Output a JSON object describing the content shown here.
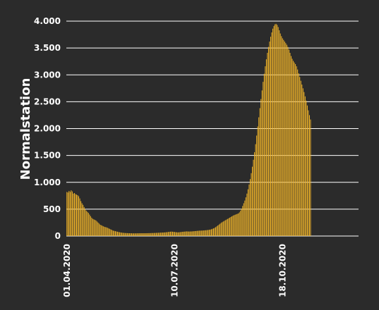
{
  "chart_data": {
    "type": "bar",
    "title": "",
    "xlabel": "",
    "ylabel": "Normalstation",
    "x_start": "2020-04-01",
    "x_end": "2020-12-27",
    "ylim": [
      0,
      4000
    ],
    "y_ticks": [
      0,
      500,
      1000,
      1500,
      2000,
      2500,
      3000,
      3500,
      4000
    ],
    "y_tick_labels": [
      "0",
      "500",
      "1.000",
      "1.500",
      "2.000",
      "2.500",
      "3.000",
      "3.500",
      "4.000"
    ],
    "x_ticks": [
      {
        "date": "2020-04-01",
        "label": "01.04.2020"
      },
      {
        "date": "2020-07-10",
        "label": "10.07.2020"
      },
      {
        "date": "2020-10-18",
        "label": "18.10.2020"
      }
    ],
    "grid": true,
    "legend": "none",
    "bar_color": "#f0b429",
    "series": [
      {
        "values": [
          820,
          810,
          840,
          820,
          850,
          830,
          790,
          800,
          780,
          770,
          760,
          740,
          700,
          650,
          610,
          580,
          540,
          500,
          470,
          450,
          430,
          400,
          370,
          340,
          320,
          310,
          300,
          290,
          270,
          250,
          230,
          210,
          200,
          190,
          180,
          170,
          165,
          160,
          150,
          140,
          130,
          120,
          110,
          100,
          95,
          90,
          85,
          80,
          75,
          70,
          66,
          62,
          60,
          58,
          56,
          55,
          54,
          53,
          52,
          52,
          51,
          50,
          50,
          50,
          50,
          51,
          51,
          52,
          52,
          52,
          52,
          52,
          52,
          52,
          53,
          53,
          54,
          54,
          55,
          56,
          56,
          57,
          58,
          59,
          60,
          61,
          62,
          63,
          64,
          65,
          66,
          68,
          70,
          72,
          75,
          78,
          80,
          82,
          80,
          78,
          75,
          72,
          70,
          68,
          70,
          72,
          75,
          78,
          80,
          82,
          84,
          86,
          85,
          84,
          84,
          85,
          86,
          88,
          90,
          92,
          94,
          96,
          98,
          100,
          100,
          101,
          102,
          104,
          106,
          108,
          110,
          113,
          116,
          120,
          126,
          134,
          142,
          152,
          165,
          180,
          196,
          212,
          228,
          244,
          258,
          270,
          282,
          294,
          306,
          318,
          330,
          342,
          354,
          366,
          378,
          388,
          396,
          404,
          412,
          420,
          440,
          470,
          510,
          560,
          610,
          660,
          720,
          790,
          870,
          960,
          1060,
          1170,
          1290,
          1420,
          1560,
          1710,
          1870,
          2040,
          2210,
          2380,
          2550,
          2710,
          2870,
          3020,
          3160,
          3290,
          3410,
          3520,
          3620,
          3710,
          3790,
          3860,
          3910,
          3940,
          3950,
          3930,
          3890,
          3830,
          3770,
          3720,
          3680,
          3650,
          3620,
          3590,
          3560,
          3520,
          3470,
          3410,
          3350,
          3300,
          3260,
          3230,
          3200,
          3160,
          3100,
          3030,
          2960,
          2890,
          2820,
          2750,
          2680,
          2600,
          2520,
          2430,
          2340,
          2250,
          2170
        ]
      }
    ]
  }
}
